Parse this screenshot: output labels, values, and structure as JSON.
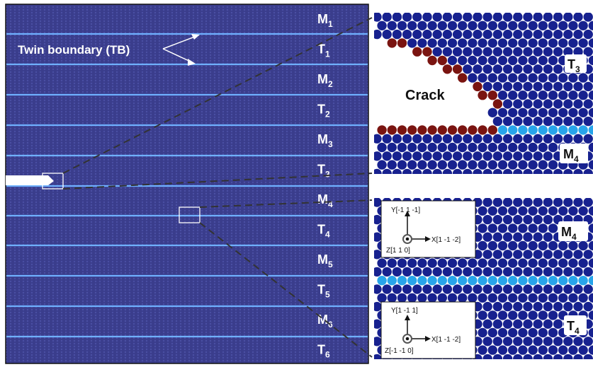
{
  "colors": {
    "panel_bg": "#3a3d8c",
    "twin_boundary": "#6fb0ff",
    "atom_blue": "#17218f",
    "atom_red": "#7a1410",
    "atom_light": "#27a4ea",
    "crack_tip": "#ffffff"
  },
  "annotation": {
    "twin_boundary": "Twin boundary (TB)"
  },
  "layer_labels": [
    {
      "base": "M",
      "sub": "1"
    },
    {
      "base": "T",
      "sub": "1"
    },
    {
      "base": "M",
      "sub": "2"
    },
    {
      "base": "T",
      "sub": "2"
    },
    {
      "base": "M",
      "sub": "3"
    },
    {
      "base": "T",
      "sub": "3"
    },
    {
      "base": "M",
      "sub": "4"
    },
    {
      "base": "T",
      "sub": "4"
    },
    {
      "base": "M",
      "sub": "5"
    },
    {
      "base": "T",
      "sub": "5"
    },
    {
      "base": "M",
      "sub": "6"
    },
    {
      "base": "T",
      "sub": "6"
    }
  ],
  "top_inset": {
    "crack_label": "Crack",
    "upper_label": {
      "base": "T",
      "sub": "3"
    },
    "lower_label": {
      "base": "M",
      "sub": "4"
    }
  },
  "bottom_inset": {
    "upper_label": {
      "base": "M",
      "sub": "4"
    },
    "lower_label": {
      "base": "T",
      "sub": "4"
    },
    "axes_upper": {
      "y": "Y[-1 1 -1]",
      "x": "X[1 -1 -2]",
      "z": "Z[1 1 0]"
    },
    "axes_lower": {
      "y": "Y[1 -1 1]",
      "x": "X[1 -1 -2]",
      "z": "Z[-1 -1 0]"
    }
  }
}
